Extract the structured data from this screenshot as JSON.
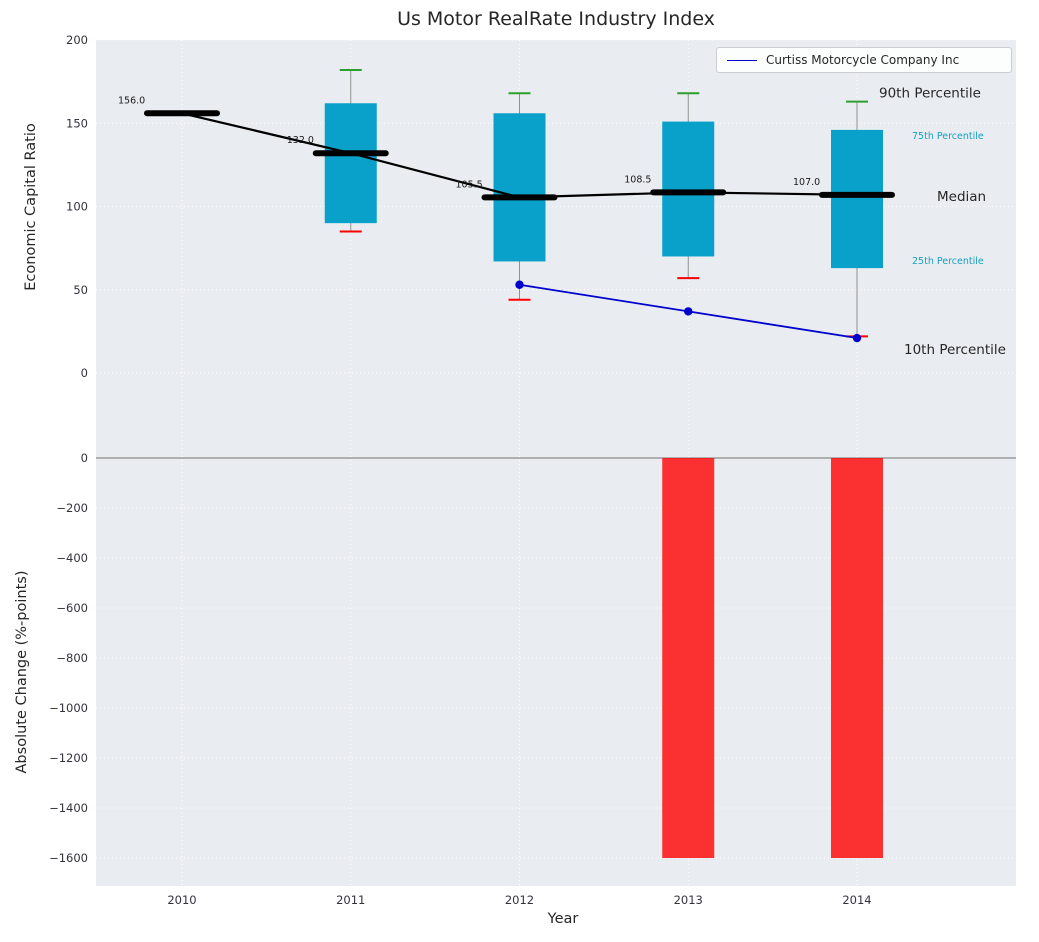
{
  "title": "Us Motor RealRate Industry Index",
  "axes": {
    "top_ylabel": "Economic Capital Ratio",
    "bottom_ylabel": "Absolute Change (%-points)",
    "xlabel": "Year"
  },
  "legend": {
    "label": "Curtiss Motorcycle Company Inc"
  },
  "colors": {
    "plot_bg": "#e9edf1",
    "grid": "#ffffff",
    "box_fill": "#09a0c9",
    "median": "#000000",
    "whisker_line": "#909090",
    "whisker_high_cap": "#2ca02c",
    "whisker_low_cap": "#ff0000",
    "company_line": "#0000cc",
    "bar_fill": "#ff0000",
    "annotation_cyan": "#17a0c4",
    "text": "#262626",
    "tick_text": "#33333d",
    "zero_line": "#8a8a8a"
  },
  "chart_data": [
    {
      "type": "box",
      "panel": "top",
      "ylabel": "Economic Capital Ratio",
      "ylim": [
        -51,
        200
      ],
      "yticks": [
        200,
        150,
        100,
        50,
        0
      ],
      "ytick_labels": [
        "200",
        "150",
        "100",
        "50",
        "0"
      ],
      "categories": [
        "2010",
        "2011",
        "2012",
        "2013",
        "2014"
      ],
      "boxes": [
        {
          "year": "2010",
          "median": 156.0,
          "q1": 156,
          "q3": 156,
          "whisker_low": null,
          "whisker_high": null,
          "median_label": "156.0"
        },
        {
          "year": "2011",
          "median": 132.0,
          "q1": 90,
          "q3": 162,
          "whisker_low": 85,
          "whisker_high": 182,
          "median_label": "132.0"
        },
        {
          "year": "2012",
          "median": 105.5,
          "q1": 67,
          "q3": 156,
          "whisker_low": 44,
          "whisker_high": 168,
          "median_label": "105.5"
        },
        {
          "year": "2013",
          "median": 108.5,
          "q1": 70,
          "q3": 151,
          "whisker_low": 57,
          "whisker_high": 168,
          "median_label": "108.5"
        },
        {
          "year": "2014",
          "median": 107.0,
          "q1": 63,
          "q3": 146,
          "whisker_low": 22,
          "whisker_high": 163,
          "median_label": "107.0"
        }
      ],
      "series": [
        {
          "name": "Curtiss Motorcycle Company Inc",
          "x": [
            "2012",
            "2013",
            "2014"
          ],
          "values": [
            53,
            37,
            21
          ]
        }
      ],
      "annotations": [
        {
          "text": "90th Percentile",
          "attach": "whisker_high",
          "style": "large"
        },
        {
          "text": "75th Percentile",
          "attach": "q3",
          "style": "small-cyan"
        },
        {
          "text": "Median",
          "attach": "median",
          "style": "large"
        },
        {
          "text": "25th Percentile",
          "attach": "q1",
          "style": "small-cyan"
        },
        {
          "text": "10th Percentile",
          "attach": "company_last",
          "style": "large"
        }
      ],
      "legend_position": "upper right",
      "grid": true
    },
    {
      "type": "bar",
      "panel": "bottom",
      "ylabel": "Absolute Change (%-points)",
      "xlabel": "Year",
      "ylim": [
        -1712,
        0
      ],
      "yticks": [
        0,
        -200,
        -400,
        -600,
        -800,
        -1000,
        -1200,
        -1400,
        -1600
      ],
      "ytick_labels": [
        "0",
        "−200",
        "−400",
        "−600",
        "−800",
        "−1000",
        "−1200",
        "−1400",
        "−1600"
      ],
      "categories": [
        "2010",
        "2011",
        "2012",
        "2013",
        "2014"
      ],
      "values": [
        null,
        null,
        null,
        -1600,
        -1600
      ],
      "grid": true
    }
  ]
}
